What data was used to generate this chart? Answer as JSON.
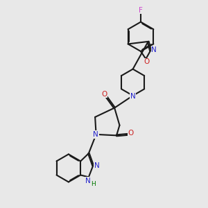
{
  "bg_color": "#e8e8e8",
  "bond_color": "#1a1a1a",
  "N_color": "#2020cc",
  "O_color": "#cc2020",
  "F_color": "#cc44cc",
  "H_color": "#007700",
  "line_width": 1.5,
  "fig_width": 3.0,
  "fig_height": 3.0,
  "dpi": 100,
  "xlim": [
    0,
    10
  ],
  "ylim": [
    0,
    10
  ]
}
